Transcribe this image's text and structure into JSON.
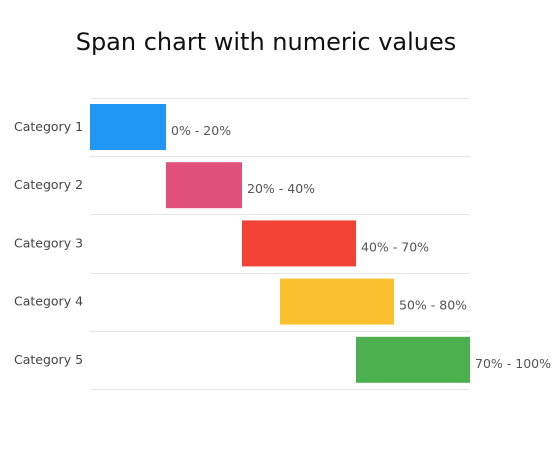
{
  "chart_data": {
    "type": "bar",
    "orientation": "horizontal",
    "variant": "span",
    "title": "Span chart with numeric values",
    "xlabel": "",
    "ylabel": "",
    "xlim": [
      0,
      100
    ],
    "grid": true,
    "legend": "none",
    "categories": [
      "Category 1",
      "Category 2",
      "Category 3",
      "Category 4",
      "Category 5"
    ],
    "series": [
      {
        "values": [
          [
            0,
            20
          ],
          [
            20,
            40
          ],
          [
            40,
            70
          ],
          [
            50,
            80
          ],
          [
            70,
            100
          ]
        ],
        "labels": [
          "0% - 20%",
          "20% - 40%",
          "40% - 70%",
          "50% - 80%",
          "70% - 100%"
        ],
        "colors": [
          "#2196F3",
          "#E0507A",
          "#F44336",
          "#FBC02D",
          "#4CAF50"
        ]
      }
    ]
  }
}
